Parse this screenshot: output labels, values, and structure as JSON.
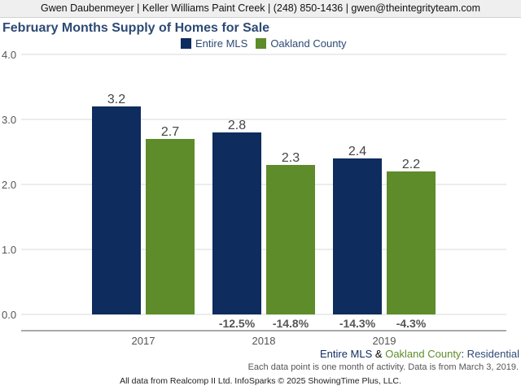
{
  "header": {
    "text": "Gwen Daubenmeyer | Keller Williams Paint Creek | (248) 850-1436 | gwen@theintegrityteam.com"
  },
  "colors": {
    "entire_mls": "#0e2c5e",
    "oakland_county": "#5e8c2a",
    "title": "#2d4a75",
    "pct_label": "#555555"
  },
  "footer": {
    "series_a": "Entire MLS",
    "amp": " & ",
    "series_b": "Oakland County",
    "colon": ":",
    "category": " Residential",
    "note": "Each data point is one month of activity. Data is from March 3, 2019.",
    "credit": "All data from Realcomp II Ltd. InfoSparks © 2025 ShowingTime Plus, LLC."
  },
  "chart_data": {
    "type": "bar",
    "title": "February Months Supply of Homes for Sale",
    "categories": [
      "2017",
      "2018",
      "2019"
    ],
    "series": [
      {
        "name": "Entire MLS",
        "values": [
          3.2,
          2.8,
          2.4
        ],
        "value_labels": [
          "3.2",
          "2.8",
          "2.4"
        ],
        "pct_change": [
          "",
          "-12.5%",
          "-14.3%"
        ]
      },
      {
        "name": "Oakland County",
        "values": [
          2.7,
          2.3,
          2.2
        ],
        "value_labels": [
          "2.7",
          "2.3",
          "2.2"
        ],
        "pct_change": [
          "",
          "-14.8%",
          "-4.3%"
        ]
      }
    ],
    "ylim": [
      0,
      4
    ],
    "yticks": [
      "0.0",
      "1.0",
      "2.0",
      "3.0",
      "4.0"
    ],
    "grid": true,
    "legend": "top-center"
  }
}
